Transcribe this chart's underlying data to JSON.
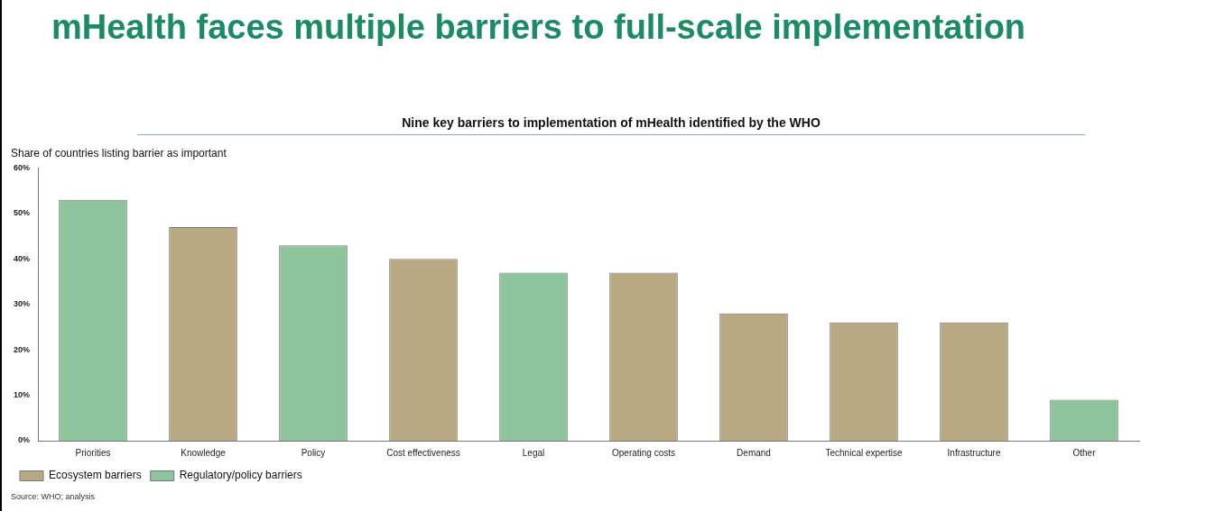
{
  "chart_data": {
    "type": "bar",
    "title": "mHealth faces multiple barriers to full-scale implementation",
    "subtitle": "Nine key barriers to implementation of mHealth identified by the WHO",
    "ylabel": "Share of countries listing barrier as important",
    "categories": [
      "Priorities",
      "Knowledge",
      "Policy",
      "Cost effectiveness",
      "Legal",
      "Operating costs",
      "Demand",
      "Technical expertise",
      "Infrastructure",
      "Other"
    ],
    "series": [
      {
        "name": "Ecosystem barriers",
        "color": "#b8a983",
        "values": [
          null,
          47,
          null,
          40,
          null,
          37,
          28,
          26,
          26,
          null
        ]
      },
      {
        "name": "Regulatory/policy barriers",
        "color": "#8ec49c",
        "values": [
          53,
          null,
          43,
          null,
          37,
          null,
          null,
          null,
          null,
          9
        ]
      }
    ],
    "ylim": [
      0,
      60
    ],
    "yticks": [
      {
        "value": 0,
        "label": "0%"
      },
      {
        "value": 10,
        "label": "10%"
      },
      {
        "value": 20,
        "label": "20%"
      },
      {
        "value": 30,
        "label": "30%"
      },
      {
        "value": 40,
        "label": "40%"
      },
      {
        "value": 50,
        "label": "50%"
      },
      {
        "value": 60,
        "label": "60%"
      }
    ],
    "grid": false,
    "legend": "bottom left",
    "annotations": [
      "Source: WHO; analysis"
    ]
  }
}
